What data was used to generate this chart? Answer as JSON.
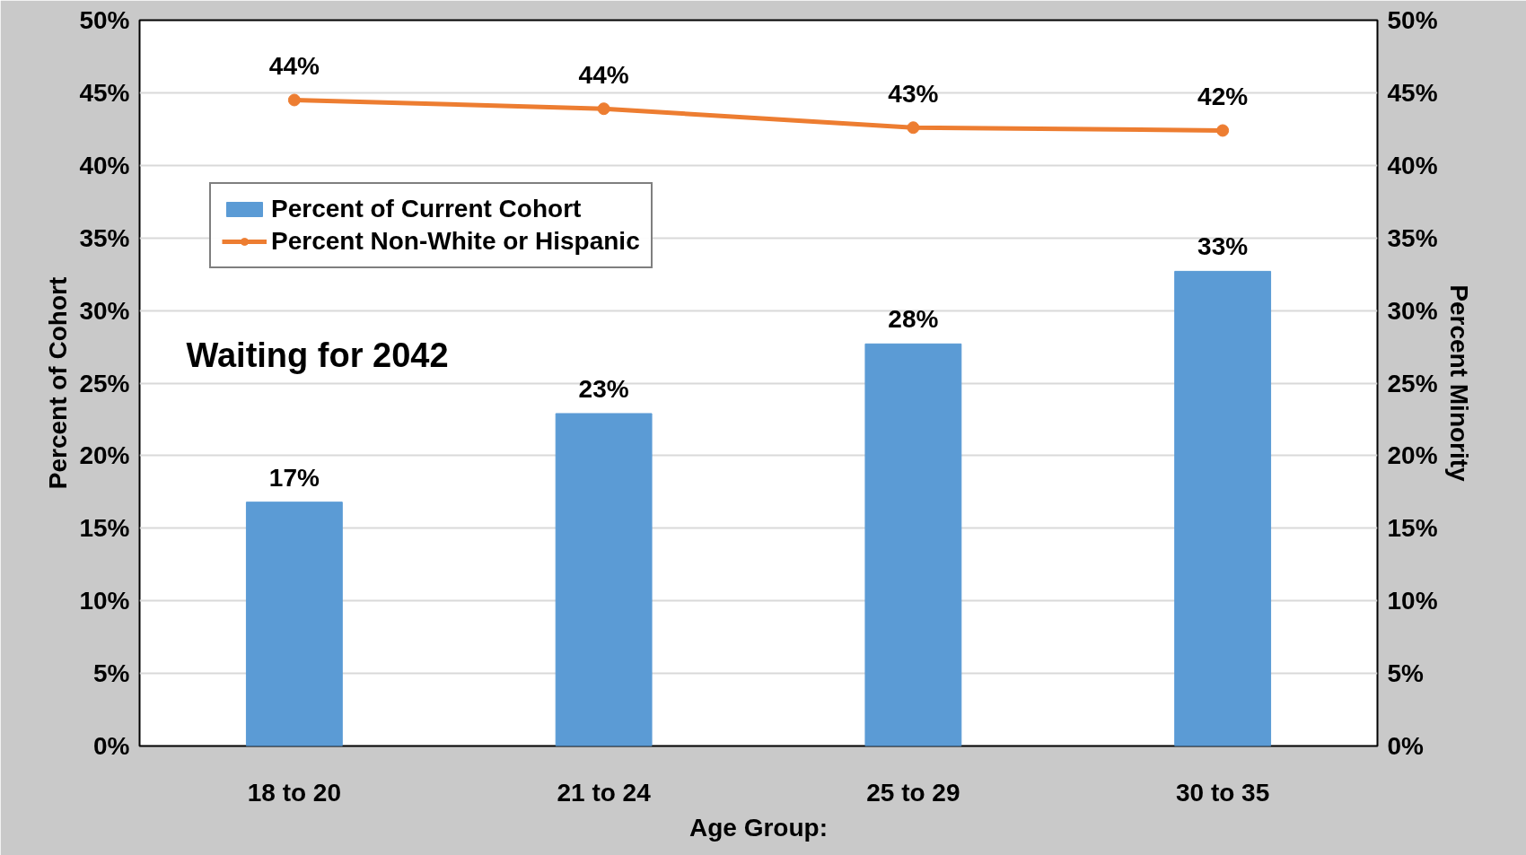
{
  "chart_data": {
    "type": "bar",
    "title": "Waiting for 2042",
    "xlabel": "Age Group:",
    "ylabel": "Percent of Cohort",
    "y2label": "Percent Minority",
    "categories": [
      "18 to 20",
      "21 to 24",
      "25 to 29",
      "30 to 35"
    ],
    "series": [
      {
        "name": "Percent of Current Cohort",
        "color": "#5b9bd5",
        "values": [
          16.8,
          22.9,
          27.7,
          32.7
        ],
        "value_labels": [
          "17%",
          "23%",
          "28%",
          "33%"
        ]
      },
      {
        "name": "Percent Non-White or Hispanic",
        "type": "line",
        "color": "#ed7d31",
        "values": [
          44.5,
          43.9,
          42.6,
          42.4
        ],
        "value_labels": [
          "44%",
          "44%",
          "43%",
          "42%"
        ]
      }
    ],
    "ylim": [
      0,
      50
    ],
    "yticks": [
      {
        "value": 0,
        "label": "0%"
      },
      {
        "value": 5,
        "label": "5%"
      },
      {
        "value": 10,
        "label": "10%"
      },
      {
        "value": 15,
        "label": "15%"
      },
      {
        "value": 20,
        "label": "20%"
      },
      {
        "value": 25,
        "label": "25%"
      },
      {
        "value": 30,
        "label": "30%"
      },
      {
        "value": 35,
        "label": "35%"
      },
      {
        "value": 40,
        "label": "40%"
      },
      {
        "value": 45,
        "label": "45%"
      },
      {
        "value": 50,
        "label": "50%"
      }
    ],
    "y2lim": [
      0,
      50
    ],
    "y2ticks": [
      {
        "value": 0,
        "label": "0%"
      },
      {
        "value": 5,
        "label": "5%"
      },
      {
        "value": 10,
        "label": "10%"
      },
      {
        "value": 15,
        "label": "15%"
      },
      {
        "value": 20,
        "label": "20%"
      },
      {
        "value": 25,
        "label": "25%"
      },
      {
        "value": 30,
        "label": "30%"
      },
      {
        "value": 35,
        "label": "35%"
      },
      {
        "value": 40,
        "label": "40%"
      },
      {
        "value": 45,
        "label": "45%"
      },
      {
        "value": 50,
        "label": "50%"
      }
    ],
    "grid": "y",
    "legend": "top left",
    "marker": "circle",
    "line_style": "solid"
  }
}
